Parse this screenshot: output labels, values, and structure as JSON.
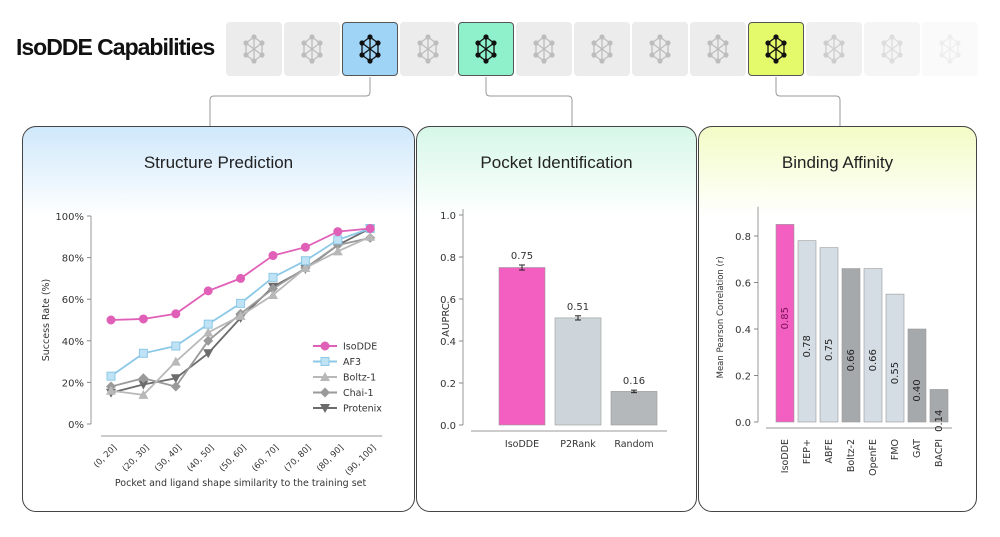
{
  "header": {
    "title": "IsoDDE Capabilities",
    "tiles": [
      {
        "state": "inactive"
      },
      {
        "state": "inactive"
      },
      {
        "state": "active",
        "color": "#9fd4f7"
      },
      {
        "state": "inactive"
      },
      {
        "state": "active",
        "color": "#8ff0cc"
      },
      {
        "state": "inactive"
      },
      {
        "state": "inactive"
      },
      {
        "state": "inactive"
      },
      {
        "state": "inactive"
      },
      {
        "state": "active",
        "color": "#e4fa6a"
      },
      {
        "state": "inactive"
      },
      {
        "state": "inactive"
      },
      {
        "state": "inactive"
      }
    ],
    "tile_icon": "molecule-network-icon"
  },
  "panels": [
    {
      "title": "Structure Prediction",
      "gradient": "#cfe8fb"
    },
    {
      "title": "Pocket Identification",
      "gradient": "#d5f7e8"
    },
    {
      "title": "Binding Affinity",
      "gradient": "#f3fbc6"
    }
  ],
  "chart_data": [
    {
      "type": "line",
      "xlabel": "Pocket and ligand shape similarity to the training set",
      "ylabel": "Success Rate (%)",
      "categories": [
        "(0, 20]",
        "(20, 30]",
        "(30, 40]",
        "(40, 50]",
        "(50, 60]",
        "(60, 70]",
        "(70, 80]",
        "(80, 90]",
        "(90, 100]"
      ],
      "ylim": [
        0,
        100
      ],
      "yticks": [
        "0%",
        "20%",
        "40%",
        "60%",
        "80%",
        "100%"
      ],
      "legend": "right",
      "series": [
        {
          "name": "IsoDDE",
          "color": "#e060b8",
          "marker": "circle",
          "values": [
            50,
            50.5,
            53,
            64,
            70,
            81,
            85,
            92.5,
            94
          ]
        },
        {
          "name": "AF3",
          "color": "#8cc8e8",
          "marker": "square",
          "values": [
            23,
            34,
            37.5,
            48,
            58,
            70.5,
            78.5,
            88.5,
            94
          ]
        },
        {
          "name": "Boltz-1",
          "color": "#b8b8b8",
          "marker": "triangle-up",
          "values": [
            16,
            14,
            30,
            44,
            52,
            62,
            75,
            83,
            90
          ]
        },
        {
          "name": "Chai-1",
          "color": "#9a9a9a",
          "marker": "diamond",
          "values": [
            18,
            22,
            18,
            40,
            53,
            65,
            75,
            86,
            89.5
          ]
        },
        {
          "name": "Protenix",
          "color": "#6c6c6c",
          "marker": "triangle-down",
          "values": [
            15,
            19,
            22,
            34,
            51,
            66,
            74.5,
            86,
            94
          ]
        }
      ]
    },
    {
      "type": "bar",
      "ylabel": "AUPRC",
      "ylim": [
        0,
        1
      ],
      "yticks": [
        "0.0",
        "0.2",
        "0.4",
        "0.6",
        "0.8",
        "1.0"
      ],
      "categories": [
        "IsoDDE",
        "P2Rank",
        "Random"
      ],
      "values": [
        0.75,
        0.51,
        0.16
      ],
      "labels": [
        "0.75",
        "0.51",
        "0.16"
      ],
      "errors": [
        0.012,
        0.01,
        0.006
      ],
      "colors": [
        "#f25fc0",
        "#cdd5da",
        "#b4b8bb"
      ]
    },
    {
      "type": "bar",
      "ylabel": "Mean Pearson Correlation (r)",
      "ylim": [
        0,
        0.9
      ],
      "yticks": [
        "0.0",
        "0.2",
        "0.4",
        "0.6",
        "0.8"
      ],
      "categories": [
        "IsoDDE",
        "FEP+",
        "ABFE",
        "Boltz-2",
        "OpenFE",
        "FMO",
        "GAT",
        "BACPI"
      ],
      "values": [
        0.85,
        0.78,
        0.75,
        0.66,
        0.66,
        0.55,
        0.4,
        0.14
      ],
      "labels": [
        "0.85",
        "0.78",
        "0.75",
        "0.66",
        "0.66",
        "0.55",
        "0.40",
        "0.14"
      ],
      "colors": [
        "#f25fc0",
        "#d3dde3",
        "#d3dde3",
        "#a5a9ac",
        "#d3dde3",
        "#d3dde3",
        "#a5a9ac",
        "#a5a9ac"
      ]
    }
  ]
}
